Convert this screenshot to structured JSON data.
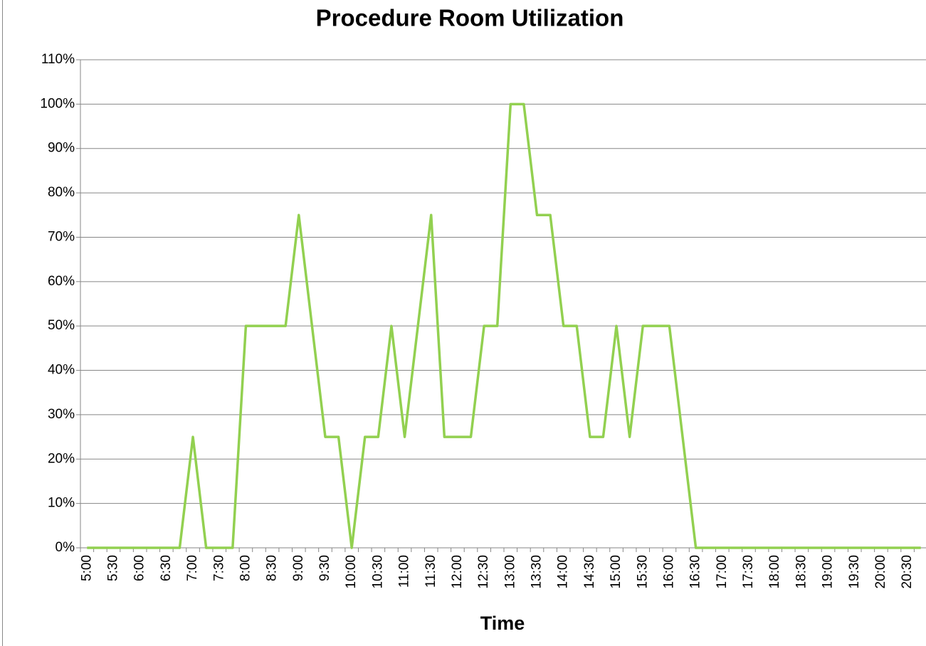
{
  "chart_data": {
    "type": "line",
    "title": "Procedure Room Utilization",
    "x_label": "Time",
    "categories": [
      "5:00",
      null,
      "5:30",
      null,
      "6:00",
      null,
      "6:30",
      null,
      "7:00",
      null,
      "7:30",
      null,
      "8:00",
      null,
      "8:30",
      null,
      "9:00",
      null,
      "9:30",
      null,
      "10:00",
      null,
      "10:30",
      null,
      "11:00",
      null,
      "11:30",
      null,
      "12:00",
      null,
      "12:30",
      null,
      "13:00",
      null,
      "13:30",
      null,
      "14:00",
      null,
      "14:30",
      null,
      "15:00",
      null,
      "15:30",
      null,
      "16:00",
      null,
      "16:30",
      null,
      "17:00",
      null,
      "17:30",
      null,
      "18:00",
      null,
      "18:30",
      null,
      "19:00",
      null,
      "19:30",
      null,
      "20:00",
      null,
      "20:30",
      null
    ],
    "values": [
      0,
      0,
      0,
      0,
      0,
      0,
      0,
      0,
      25,
      0,
      0,
      0,
      50,
      50,
      50,
      50,
      75,
      50,
      25,
      25,
      0,
      25,
      25,
      50,
      25,
      50,
      75,
      25,
      25,
      25,
      50,
      50,
      100,
      100,
      75,
      75,
      50,
      50,
      25,
      25,
      50,
      25,
      50,
      50,
      50,
      25,
      0,
      0,
      0,
      0,
      0,
      0,
      0,
      0,
      0,
      0,
      0,
      0,
      0,
      0,
      0,
      0,
      0,
      0
    ],
    "color": "#92d050",
    "ylim": [
      0,
      110
    ],
    "yticks": [
      {
        "value": 0,
        "label": "0%"
      },
      {
        "value": 10,
        "label": "10%"
      },
      {
        "value": 20,
        "label": "20%"
      },
      {
        "value": 30,
        "label": "30%"
      },
      {
        "value": 40,
        "label": "40%"
      },
      {
        "value": 50,
        "label": "50%"
      },
      {
        "value": 60,
        "label": "60%"
      },
      {
        "value": 70,
        "label": "70%"
      },
      {
        "value": 80,
        "label": "80%"
      },
      {
        "value": 90,
        "label": "90%"
      },
      {
        "value": 100,
        "label": "100%"
      },
      {
        "value": 110,
        "label": "110%"
      }
    ],
    "grid": true
  }
}
